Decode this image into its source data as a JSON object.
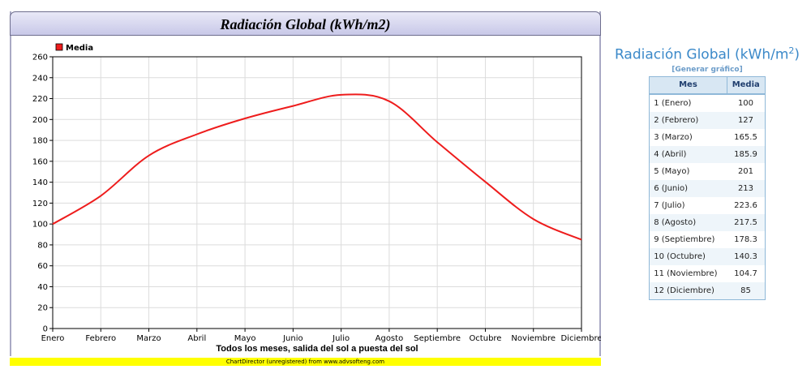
{
  "chart": {
    "title": "Radiación Global (kWh/m2)",
    "credit": "ChartDirector (unregistered) from www.advsofteng.com"
  },
  "side": {
    "title": "Radiación Global (kWh/m",
    "title_sup": "2",
    "title_end": ")",
    "generate_link": "[Generar gráfico]",
    "columns": [
      "Mes",
      "Media"
    ],
    "rows": [
      {
        "mes": "1 (Enero)",
        "media": "100"
      },
      {
        "mes": "2 (Febrero)",
        "media": "127"
      },
      {
        "mes": "3 (Marzo)",
        "media": "165.5"
      },
      {
        "mes": "4 (Abril)",
        "media": "185.9"
      },
      {
        "mes": "5 (Mayo)",
        "media": "201"
      },
      {
        "mes": "6 (Junio)",
        "media": "213"
      },
      {
        "mes": "7 (Julio)",
        "media": "223.6"
      },
      {
        "mes": "8 (Agosto)",
        "media": "217.5"
      },
      {
        "mes": "9 (Septiembre)",
        "media": "178.3"
      },
      {
        "mes": "10 (Octubre)",
        "media": "140.3"
      },
      {
        "mes": "11 (Noviembre)",
        "media": "104.7"
      },
      {
        "mes": "12 (Diciembre)",
        "media": "85"
      }
    ]
  },
  "chart_data": {
    "type": "line",
    "title": "Radiación Global (kWh/m2)",
    "xlabel": "Todos los meses, salida del sol a puesta del sol",
    "ylabel": "",
    "categories": [
      "Enero",
      "Febrero",
      "Marzo",
      "Abril",
      "Mayo",
      "Junio",
      "Julio",
      "Agosto",
      "Septiembre",
      "Octubre",
      "Noviembre",
      "Diciembre"
    ],
    "series": [
      {
        "name": "Media",
        "color": "#ee1c1c",
        "values": [
          100,
          127,
          165.5,
          185.9,
          201,
          213,
          223.6,
          217.5,
          178.3,
          140.3,
          104.7,
          85
        ]
      }
    ],
    "ylim": [
      0,
      260
    ],
    "yticks": [
      0,
      20,
      40,
      60,
      80,
      100,
      120,
      140,
      160,
      180,
      200,
      220,
      240,
      260
    ],
    "grid": true,
    "legend": "top-left"
  }
}
